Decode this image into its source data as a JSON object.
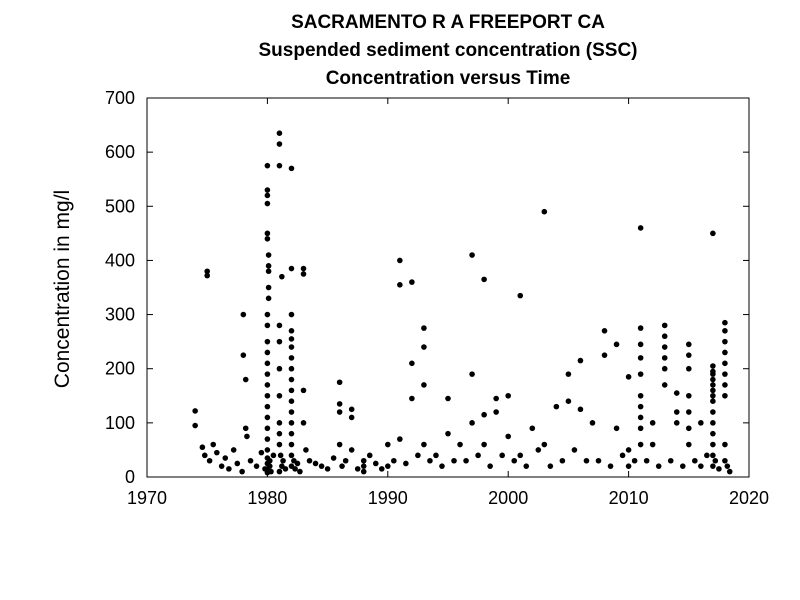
{
  "chart_data": {
    "type": "scatter",
    "title_lines": [
      "SACRAMENTO R A FREEPORT CA",
      "Suspended sediment concentration (SSC)",
      "Concentration versus Time"
    ],
    "xlabel": "",
    "ylabel": "Concentration in mg/l",
    "xlim": [
      1970,
      2020
    ],
    "ylim": [
      0,
      700
    ],
    "x_ticks": [
      1970,
      1980,
      1990,
      2000,
      2010,
      2020
    ],
    "y_ticks": [
      0,
      100,
      200,
      300,
      400,
      500,
      600,
      700
    ],
    "grid": false,
    "legend": "none",
    "marker_color": "#000000",
    "series": [
      {
        "x": [
          1974.0,
          1974.0,
          1975.0,
          1975.0,
          1974.6,
          1974.8,
          1975.2,
          1975.5,
          1975.8,
          1976.2,
          1976.5,
          1976.8,
          1977.2,
          1977.5,
          1977.9,
          1978.0,
          1978.0,
          1978.2,
          1978.2,
          1978.3,
          1978.6,
          1979.1,
          1979.5,
          1979.8,
          1980.0,
          1980.0,
          1980.0,
          1980.0,
          1980.0,
          1980.0,
          1980.1,
          1980.1,
          1980.1,
          1980.1,
          1980.1,
          1980.0,
          1980.0,
          1980.0,
          1980.0,
          1980.0,
          1980.0,
          1980.0,
          1980.0,
          1980.0,
          1980.0,
          1980.0,
          1980.0,
          1980.0,
          1980.0,
          1980.0,
          1980.0,
          1980.0,
          1980.2,
          1980.2,
          1980.3,
          1980.5,
          1981.0,
          1981.0,
          1981.0,
          1981.2,
          1981.0,
          1981.0,
          1981.0,
          1981.0,
          1981.0,
          1981.0,
          1981.0,
          1981.1,
          1981.2,
          1981.0,
          1981.3,
          1981.5,
          1982.0,
          1982.0,
          1982.0,
          1982.0,
          1982.0,
          1982.0,
          1982.0,
          1982.0,
          1982.0,
          1982.0,
          1982.0,
          1982.0,
          1982.0,
          1982.0,
          1982.0,
          1982.0,
          1982.0,
          1982.2,
          1982.3,
          1982.5,
          1982.7,
          1983.0,
          1983.0,
          1983.0,
          1983.0,
          1983.2,
          1983.5,
          1984.0,
          1984.5,
          1985.0,
          1985.5,
          1986.0,
          1986.0,
          1986.0,
          1986.0,
          1986.2,
          1986.5,
          1987.0,
          1987.0,
          1987.0,
          1987.5,
          1988.0,
          1988.0,
          1988.0,
          1988.5,
          1989.0,
          1989.5,
          1990.0,
          1990.0,
          1990.5,
          1991.0,
          1991.0,
          1991.0,
          1991.5,
          1992.0,
          1992.0,
          1992.0,
          1992.5,
          1993.0,
          1993.0,
          1993.0,
          1993.0,
          1993.5,
          1994.0,
          1994.5,
          1995.0,
          1995.0,
          1995.5,
          1996.0,
          1996.5,
          1997.0,
          1997.0,
          1997.0,
          1997.5,
          1998.0,
          1998.0,
          1998.0,
          1998.5,
          1999.0,
          1999.0,
          1999.5,
          2000.0,
          2000.0,
          2000.5,
          2001.0,
          2001.0,
          2001.5,
          2002.0,
          2002.5,
          2003.0,
          2003.0,
          2003.5,
          2004.0,
          2004.5,
          2005.0,
          2005.0,
          2005.5,
          2006.0,
          2006.0,
          2006.5,
          2007.0,
          2007.5,
          2008.0,
          2008.0,
          2008.5,
          2009.0,
          2009.0,
          2009.5,
          2010.0,
          2010.0,
          2010.0,
          2010.5,
          2011.0,
          2011.0,
          2011.0,
          2011.0,
          2011.0,
          2011.0,
          2011.0,
          2011.0,
          2011.0,
          2011.0,
          2011.5,
          2012.0,
          2012.0,
          2012.5,
          2013.0,
          2013.0,
          2013.0,
          2013.0,
          2013.0,
          2013.0,
          2013.5,
          2014.0,
          2014.0,
          2014.0,
          2014.5,
          2015.0,
          2015.0,
          2015.0,
          2015.0,
          2015.0,
          2015.0,
          2015.0,
          2015.5,
          2016.0,
          2016.0,
          2016.5,
          2017.0,
          2017.0,
          2017.0,
          2017.0,
          2017.0,
          2017.0,
          2017.0,
          2017.0,
          2017.0,
          2017.0,
          2017.0,
          2017.0,
          2017.0,
          2017.0,
          2017.0,
          2017.2,
          2017.5,
          2018.0,
          2018.0,
          2018.0,
          2018.0,
          2018.0,
          2018.0,
          2018.0,
          2018.0,
          2018.0,
          2018.0,
          2018.2,
          2018.4
        ],
        "y": [
          122,
          95,
          380,
          372,
          55,
          40,
          30,
          60,
          45,
          20,
          35,
          15,
          50,
          25,
          10,
          300,
          225,
          180,
          90,
          75,
          30,
          20,
          45,
          15,
          575,
          530,
          520,
          505,
          450,
          440,
          410,
          390,
          380,
          350,
          330,
          300,
          280,
          250,
          230,
          210,
          190,
          170,
          150,
          130,
          110,
          90,
          70,
          50,
          35,
          25,
          15,
          8,
          30,
          20,
          10,
          40,
          635,
          615,
          575,
          370,
          280,
          250,
          200,
          150,
          100,
          80,
          60,
          40,
          20,
          10,
          30,
          15,
          570,
          385,
          300,
          270,
          255,
          240,
          220,
          200,
          180,
          160,
          140,
          120,
          100,
          80,
          60,
          40,
          20,
          30,
          15,
          25,
          10,
          385,
          375,
          160,
          100,
          50,
          30,
          25,
          20,
          15,
          35,
          175,
          135,
          120,
          60,
          20,
          30,
          125,
          110,
          50,
          15,
          20,
          10,
          30,
          40,
          25,
          15,
          60,
          20,
          30,
          400,
          355,
          70,
          25,
          360,
          210,
          145,
          40,
          275,
          240,
          170,
          60,
          30,
          40,
          20,
          145,
          80,
          30,
          60,
          30,
          410,
          190,
          100,
          40,
          365,
          115,
          60,
          20,
          145,
          120,
          40,
          150,
          75,
          30,
          335,
          40,
          20,
          90,
          50,
          490,
          60,
          20,
          130,
          30,
          190,
          140,
          50,
          215,
          125,
          30,
          100,
          30,
          270,
          225,
          20,
          245,
          90,
          40,
          185,
          50,
          20,
          30,
          460,
          275,
          245,
          220,
          190,
          150,
          130,
          110,
          90,
          60,
          30,
          100,
          60,
          20,
          280,
          260,
          240,
          220,
          200,
          170,
          30,
          155,
          120,
          100,
          20,
          245,
          225,
          200,
          150,
          120,
          90,
          60,
          30,
          100,
          20,
          40,
          450,
          205,
          195,
          190,
          180,
          170,
          160,
          150,
          140,
          120,
          100,
          80,
          60,
          40,
          20,
          30,
          15,
          285,
          270,
          250,
          230,
          210,
          190,
          170,
          150,
          60,
          30,
          20,
          10
        ]
      }
    ]
  }
}
